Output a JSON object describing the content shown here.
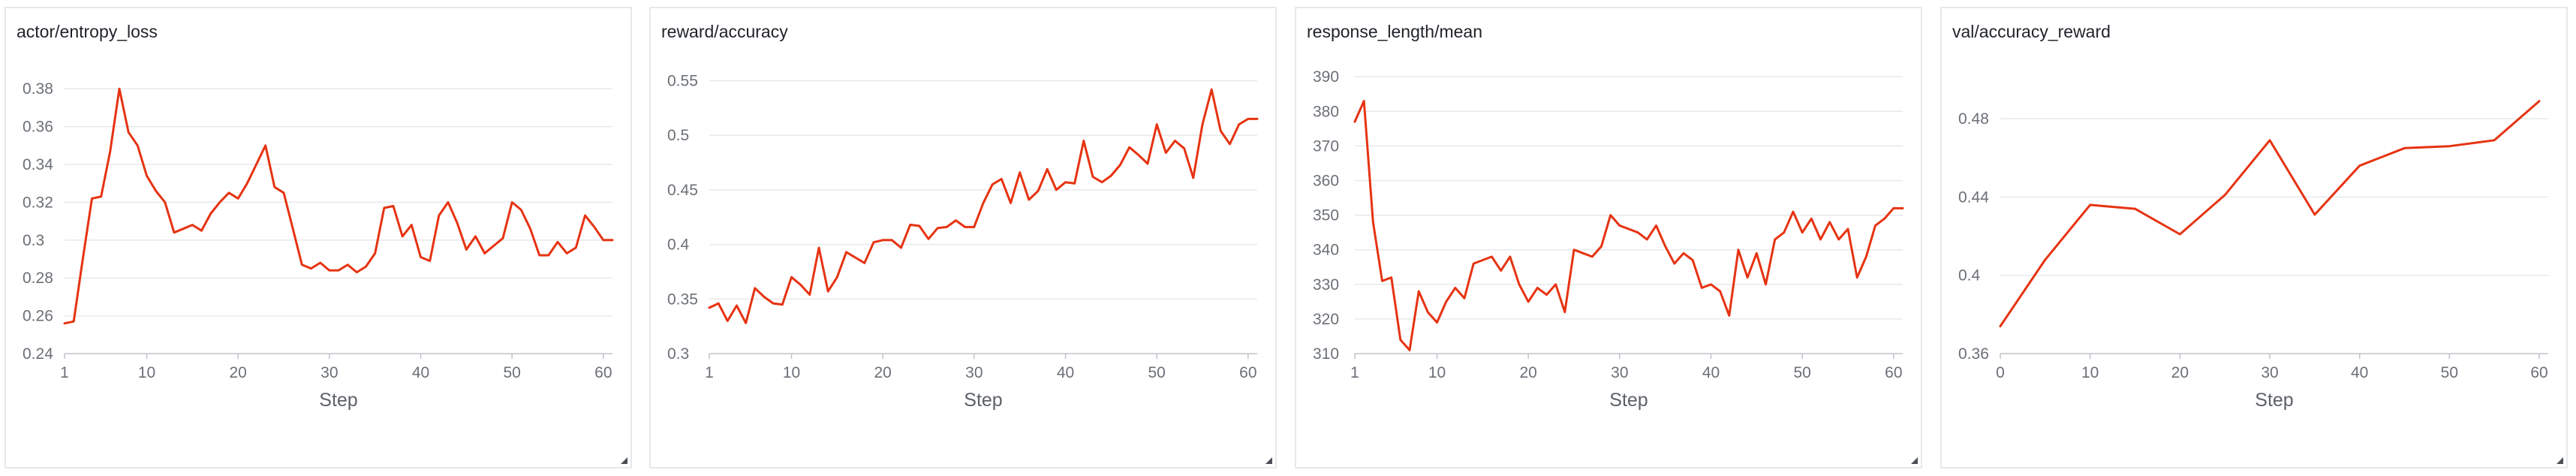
{
  "colors": {
    "line": "#e63312",
    "grid": "#e7e9ec",
    "axis": "#bfc3c8"
  },
  "chart_data": [
    {
      "type": "line",
      "title": "actor/entropy_loss",
      "xlabel": "Step",
      "x_ticks": [
        1,
        10,
        20,
        30,
        40,
        50,
        60
      ],
      "xlim": [
        1,
        61
      ],
      "y_ticks": [
        "0.24",
        "0.26",
        "0.28",
        "0.3",
        "0.32",
        "0.34",
        "0.36",
        "0.38"
      ],
      "ylim": [
        0.24,
        0.39
      ],
      "grid": true,
      "series": [
        {
          "x": [
            1,
            2,
            3,
            4,
            5,
            6,
            7,
            8,
            9,
            10,
            11,
            12,
            13,
            14,
            15,
            16,
            17,
            18,
            19,
            20,
            21,
            22,
            23,
            24,
            25,
            26,
            27,
            28,
            29,
            30,
            31,
            32,
            33,
            34,
            35,
            36,
            37,
            38,
            39,
            40,
            41,
            42,
            43,
            44,
            45,
            46,
            47,
            48,
            49,
            50,
            51,
            52,
            53,
            54,
            55,
            56,
            57,
            58,
            59,
            60,
            61
          ],
          "y": [
            0.256,
            0.257,
            0.29,
            0.322,
            0.323,
            0.347,
            0.38,
            0.357,
            0.35,
            0.334,
            0.326,
            0.32,
            0.304,
            0.306,
            0.308,
            0.305,
            0.314,
            0.32,
            0.325,
            0.322,
            0.33,
            0.34,
            0.35,
            0.328,
            0.325,
            0.306,
            0.287,
            0.285,
            0.288,
            0.284,
            0.284,
            0.287,
            0.283,
            0.286,
            0.293,
            0.317,
            0.318,
            0.302,
            0.308,
            0.291,
            0.289,
            0.313,
            0.32,
            0.309,
            0.295,
            0.302,
            0.293,
            0.297,
            0.301,
            0.32,
            0.316,
            0.306,
            0.292,
            0.292,
            0.299,
            0.293,
            0.296,
            0.313,
            0.307,
            0.3,
            0.3
          ]
        }
      ]
    },
    {
      "type": "line",
      "title": "reward/accuracy",
      "xlabel": "Step",
      "x_ticks": [
        1,
        10,
        20,
        30,
        40,
        50,
        60
      ],
      "xlim": [
        1,
        61
      ],
      "y_ticks": [
        "0.3",
        "0.35",
        "0.4",
        "0.45",
        "0.5",
        "0.55"
      ],
      "ylim": [
        0.3,
        0.56
      ],
      "grid": true,
      "series": [
        {
          "x": [
            1,
            2,
            3,
            4,
            5,
            6,
            7,
            8,
            9,
            10,
            11,
            12,
            13,
            14,
            15,
            16,
            17,
            18,
            19,
            20,
            21,
            22,
            23,
            24,
            25,
            26,
            27,
            28,
            29,
            30,
            31,
            32,
            33,
            34,
            35,
            36,
            37,
            38,
            39,
            40,
            41,
            42,
            43,
            44,
            45,
            46,
            47,
            48,
            49,
            50,
            51,
            52,
            53,
            54,
            55,
            56,
            57,
            58,
            59,
            60,
            61
          ],
          "y": [
            0.342,
            0.346,
            0.33,
            0.344,
            0.328,
            0.36,
            0.352,
            0.346,
            0.345,
            0.37,
            0.363,
            0.354,
            0.397,
            0.357,
            0.37,
            0.393,
            0.388,
            0.383,
            0.402,
            0.404,
            0.404,
            0.397,
            0.418,
            0.417,
            0.405,
            0.415,
            0.416,
            0.422,
            0.416,
            0.416,
            0.438,
            0.455,
            0.46,
            0.438,
            0.466,
            0.441,
            0.449,
            0.469,
            0.45,
            0.457,
            0.456,
            0.495,
            0.462,
            0.457,
            0.463,
            0.473,
            0.489,
            0.482,
            0.474,
            0.51,
            0.484,
            0.495,
            0.488,
            0.461,
            0.51,
            0.542,
            0.504,
            0.492,
            0.51,
            0.515,
            0.515
          ]
        }
      ]
    },
    {
      "type": "line",
      "title": "response_length/mean",
      "xlabel": "Step",
      "x_ticks": [
        1,
        10,
        20,
        30,
        40,
        50,
        60
      ],
      "xlim": [
        1,
        61
      ],
      "y_ticks": [
        "310",
        "320",
        "330",
        "340",
        "350",
        "360",
        "370",
        "380",
        "390"
      ],
      "ylim": [
        310,
        392
      ],
      "grid": true,
      "series": [
        {
          "x": [
            1,
            2,
            3,
            4,
            5,
            6,
            7,
            8,
            9,
            10,
            11,
            12,
            13,
            14,
            15,
            16,
            17,
            18,
            19,
            20,
            21,
            22,
            23,
            24,
            25,
            26,
            27,
            28,
            29,
            30,
            31,
            32,
            33,
            34,
            35,
            36,
            37,
            38,
            39,
            40,
            41,
            42,
            43,
            44,
            45,
            46,
            47,
            48,
            49,
            50,
            51,
            52,
            53,
            54,
            55,
            56,
            57,
            58,
            59,
            60,
            61
          ],
          "y": [
            377,
            383,
            348,
            331,
            332,
            314,
            311,
            328,
            322,
            319,
            325,
            329,
            326,
            336,
            337,
            338,
            334,
            338,
            330,
            325,
            329,
            327,
            330,
            322,
            340,
            339,
            338,
            341,
            350,
            347,
            346,
            345,
            343,
            347,
            341,
            336,
            339,
            337,
            329,
            330,
            328,
            321,
            340,
            332,
            339,
            330,
            343,
            345,
            351,
            345,
            349,
            343,
            348,
            343,
            346,
            332,
            338,
            347,
            349,
            352,
            352
          ]
        }
      ]
    },
    {
      "type": "line",
      "title": "val/accuracy_reward",
      "xlabel": "Step",
      "x_ticks": [
        0,
        10,
        20,
        30,
        40,
        50,
        60
      ],
      "xlim": [
        0,
        61
      ],
      "y_ticks": [
        "0.36",
        "0.4",
        "0.44",
        "0.48"
      ],
      "ylim": [
        0.36,
        0.505
      ],
      "grid": true,
      "series": [
        {
          "x": [
            0,
            5,
            10,
            15,
            20,
            25,
            30,
            35,
            40,
            45,
            50,
            55,
            60
          ],
          "y": [
            0.374,
            0.408,
            0.436,
            0.434,
            0.421,
            0.441,
            0.469,
            0.431,
            0.456,
            0.465,
            0.466,
            0.469,
            0.489
          ]
        }
      ]
    }
  ]
}
